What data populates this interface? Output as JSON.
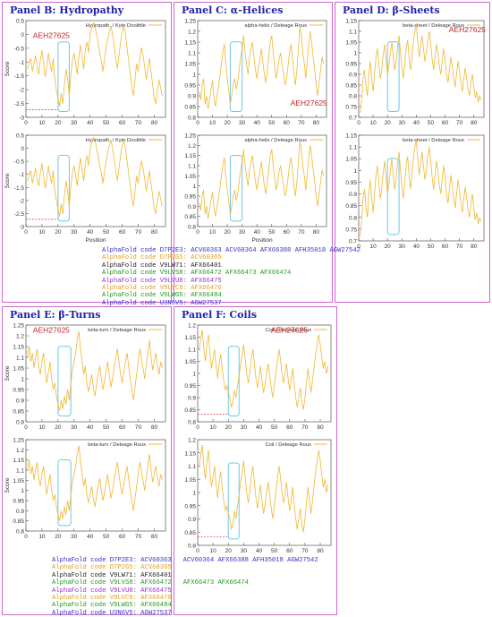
{
  "colors": {
    "frame": "#cc66cc",
    "title": "#2222aa",
    "line": "#f0b830",
    "box": "#6ec8e8",
    "stamp": "#cc2222",
    "refline": "#dd3333"
  },
  "panels": [
    {
      "id": "B",
      "title": "Panel B: Hydropathy",
      "stamp": "AEH27625",
      "legend": "Hydropath. / Kyte  Doolittle",
      "ylabel": "Score",
      "xlabel": "Position",
      "y_ticks": [
        "0.5",
        "0",
        "-0.5",
        "-1",
        "-1.5",
        "-2",
        "-2.5",
        "-3"
      ]
    },
    {
      "id": "C",
      "title": "Panel C: α-Helices",
      "stamp": "AEH27625",
      "legend": "alpha-helix / Deleage  Roux",
      "xlabel": "Position",
      "y_ticks": [
        "1.25",
        "1.2",
        "1.15",
        "1.1",
        "1.05",
        "1",
        "0.95",
        "0.9",
        "0.85",
        "0.8"
      ]
    },
    {
      "id": "D",
      "title": "Panel D: β-Sheets",
      "stamp": "AEH27625",
      "legend": "beta-sheet / Deleage  Roux",
      "y_ticks": [
        "1.15",
        "1.1",
        "1.05",
        "1",
        "0.95",
        "0.9",
        "0.85",
        "0.8",
        "0.75",
        "0.7"
      ]
    },
    {
      "id": "E",
      "title": "Panel E: β-Turns",
      "stamp": "AEH27625",
      "legend": "beta-turn / Deleage  Roux",
      "ylabel": "Score",
      "y_ticks": [
        "1.25",
        "1.2",
        "1.15",
        "1.1",
        "1.05",
        "1",
        "0.95",
        "0.9",
        "0.85",
        "0.8"
      ]
    },
    {
      "id": "F",
      "title": "Panel F: Coils",
      "stamp": "AEH27625",
      "legend": "Coil / Deleage  Roux",
      "y_ticks": [
        "1.2",
        "1.15",
        "1.1",
        "1.05",
        "1",
        "0.95",
        "0.9",
        "0.85",
        "0.8"
      ]
    }
  ],
  "x_ticks": [
    "0",
    "10",
    "20",
    "30",
    "40",
    "50",
    "60",
    "70",
    "80"
  ],
  "codes_top": [
    {
      "label": "AlphaFold code D7P2E3:",
      "ids": "ACV60363 ACV60364 AFX66388 AFH35018 AGW27542",
      "color": "#3333cc"
    },
    {
      "label": "AlphaFold code D7P2G5:",
      "ids": "ACV60365",
      "color": "#e0a020"
    },
    {
      "label": "AlphaFold code V9LW71:",
      "ids": "AFX66401",
      "color": "#222222"
    },
    {
      "label": "AlphaFold code V9LVS8:",
      "ids": "AFX66472 AFX66473 AFX66474",
      "color": "#229922"
    },
    {
      "label": "AlphaFold code V9LVU8:",
      "ids": "AFX66475",
      "color": "#9933cc"
    },
    {
      "label": "AlphaFold code V9LVC9:",
      "ids": "AFX66476",
      "color": "#e0a020"
    },
    {
      "label": "AlphaFold code V9LWG5:",
      "ids": "AFX66484",
      "color": "#229922"
    },
    {
      "label": "AlphaFold code U3N6V5:",
      "ids": "AGW27537",
      "color": "#3333cc"
    }
  ],
  "codes_bottom": [
    {
      "label": "AlphaFold code D7P2E3:",
      "ids": "ACV60363",
      "color": "#3333cc",
      "more": "ACV60364 AFX66388 AFH35018 AGW27542"
    },
    {
      "label": "AlphaFold code D7P2G5:",
      "ids": "ACV60365",
      "color": "#e0a020"
    },
    {
      "label": "AlphaFold code V9LW71:",
      "ids": "AFX66401",
      "color": "#222222"
    },
    {
      "label": "AlphaFold code V9LVS8:",
      "ids": "AFX66472",
      "color": "#229922",
      "more": "AFX66473 AFX66474"
    },
    {
      "label": "AlphaFold code V9LVU8:",
      "ids": "AFX66475",
      "color": "#9933cc"
    },
    {
      "label": "AlphaFold code V9LVC9:",
      "ids": "AFX66476",
      "color": "#e0a020"
    },
    {
      "label": "AlphaFold code V9LWG5:",
      "ids": "AFX66484",
      "color": "#229922"
    },
    {
      "label": "AlphaFold code U3N6V5:",
      "ids": "AGW27537",
      "color": "#3333cc"
    }
  ],
  "chart_data": [
    {
      "panel": "B",
      "type": "line",
      "series": [
        {
          "name": "Hydropath. / Kyte  Doolittle"
        }
      ],
      "xlim": [
        0,
        87
      ],
      "ylim": [
        -3,
        0.6
      ],
      "highlight_x": [
        20,
        27
      ],
      "x": [
        1,
        2,
        3,
        4,
        5,
        6,
        7,
        8,
        9,
        10,
        11,
        12,
        13,
        14,
        15,
        16,
        17,
        18,
        19,
        20,
        21,
        22,
        23,
        24,
        25,
        26,
        27,
        28,
        29,
        30,
        31,
        32,
        33,
        34,
        35,
        36,
        37,
        38,
        39,
        40,
        41,
        42,
        43,
        44,
        45,
        46,
        47,
        48,
        49,
        50,
        51,
        52,
        53,
        54,
        55,
        56,
        57,
        58,
        59,
        60,
        61,
        62,
        63,
        64,
        65,
        66,
        67,
        68,
        69,
        70,
        71,
        72,
        73,
        74,
        75,
        76,
        77,
        78,
        79,
        80,
        81,
        82,
        83,
        84,
        85
      ],
      "y": [
        -1.2,
        -1.0,
        -0.8,
        -1.3,
        -1.0,
        -0.7,
        -1.1,
        -1.4,
        -0.9,
        -0.5,
        -1.0,
        -1.5,
        -1.1,
        -0.6,
        -1.0,
        -1.3,
        -0.8,
        -1.6,
        -2.0,
        -2.3,
        -2.6,
        -2.1,
        -2.5,
        -1.8,
        -1.2,
        -1.6,
        -2.2,
        -1.4,
        -0.9,
        -0.6,
        -1.0,
        -1.4,
        -0.7,
        -0.3,
        -0.8,
        -1.2,
        -0.5,
        -0.2,
        -0.6,
        0.1,
        0.3,
        0.5,
        0.4,
        0.1,
        -0.2,
        -0.6,
        -0.9,
        -1.3,
        -0.8,
        -0.4,
        -0.1,
        0.2,
        0.4,
        0.1,
        -0.3,
        -0.8,
        -1.2,
        -0.7,
        -0.2,
        0.2,
        0.4,
        0.1,
        -0.4,
        -0.9,
        -1.4,
        -1.9,
        -2.2,
        -1.6,
        -1.0,
        -1.3,
        -0.8,
        -0.4,
        -0.7,
        -1.1,
        -1.6,
        -1.2,
        -0.8,
        -1.3,
        -1.8,
        -2.3,
        -2.5,
        -2.0,
        -1.6,
        -1.9,
        -2.2
      ]
    },
    {
      "panel": "C",
      "type": "line",
      "series": [
        {
          "name": "alpha-helix / Deleage  Roux"
        }
      ],
      "xlim": [
        0,
        87
      ],
      "ylim": [
        0.8,
        1.25
      ],
      "highlight_x": [
        22,
        30
      ],
      "x": [
        1,
        2,
        3,
        4,
        5,
        6,
        7,
        8,
        9,
        10,
        11,
        12,
        13,
        14,
        15,
        16,
        17,
        18,
        19,
        20,
        21,
        22,
        23,
        24,
        25,
        26,
        27,
        28,
        29,
        30,
        31,
        32,
        33,
        34,
        35,
        36,
        37,
        38,
        39,
        40,
        41,
        42,
        43,
        44,
        45,
        46,
        47,
        48,
        49,
        50,
        51,
        52,
        53,
        54,
        55,
        56,
        57,
        58,
        59,
        60,
        61,
        62,
        63,
        64,
        65,
        66,
        67,
        68,
        69,
        70,
        71,
        72,
        73,
        74,
        75,
        76,
        77,
        78,
        79,
        80,
        81,
        82,
        83,
        84,
        85
      ],
      "y": [
        0.92,
        0.88,
        0.95,
        0.98,
        0.86,
        0.9,
        0.84,
        0.88,
        0.93,
        0.97,
        0.89,
        0.85,
        0.9,
        0.94,
        0.99,
        1.05,
        1.1,
        1.14,
        1.05,
        0.98,
        0.92,
        0.86,
        0.9,
        0.95,
        0.98,
        0.93,
        0.96,
        1.02,
        1.08,
        1.12,
        1.18,
        1.1,
        1.05,
        1.0,
        1.08,
        1.12,
        1.15,
        1.08,
        1.02,
        0.98,
        1.03,
        1.07,
        1.12,
        1.06,
        1.0,
        0.96,
        1.02,
        1.08,
        1.15,
        1.18,
        1.1,
        1.04,
        0.98,
        1.02,
        1.07,
        1.1,
        1.05,
        1.0,
        0.95,
        0.98,
        1.04,
        1.1,
        1.14,
        1.08,
        1.0,
        0.95,
        1.02,
        1.12,
        1.22,
        1.18,
        1.1,
        1.05,
        0.98,
        1.06,
        1.14,
        1.2,
        1.15,
        1.08,
        1.02,
        0.95,
        0.9,
        0.96,
        1.02,
        1.08,
        1.05
      ]
    },
    {
      "panel": "D",
      "type": "line",
      "series": [
        {
          "name": "beta-sheet / Deleage  Roux"
        }
      ],
      "xlim": [
        0,
        87
      ],
      "ylim": [
        0.7,
        1.15
      ],
      "highlight_x": [
        20,
        28
      ],
      "x": [
        1,
        2,
        3,
        4,
        5,
        6,
        7,
        8,
        9,
        10,
        11,
        12,
        13,
        14,
        15,
        16,
        17,
        18,
        19,
        20,
        21,
        22,
        23,
        24,
        25,
        26,
        27,
        28,
        29,
        30,
        31,
        32,
        33,
        34,
        35,
        36,
        37,
        38,
        39,
        40,
        41,
        42,
        43,
        44,
        45,
        46,
        47,
        48,
        49,
        50,
        51,
        52,
        53,
        54,
        55,
        56,
        57,
        58,
        59,
        60,
        61,
        62,
        63,
        64,
        65,
        66,
        67,
        68,
        69,
        70,
        71,
        72,
        73,
        74,
        75,
        76,
        77,
        78,
        79,
        80,
        81,
        82,
        83,
        84,
        85
      ],
      "y": [
        0.72,
        0.78,
        0.88,
        0.92,
        0.85,
        0.8,
        0.9,
        0.96,
        0.88,
        0.82,
        0.9,
        0.98,
        1.02,
        0.95,
        0.88,
        0.92,
        0.99,
        1.04,
        0.97,
        0.9,
        0.94,
        1.0,
        1.05,
        0.98,
        0.92,
        0.96,
        1.03,
        1.08,
        1.0,
        0.93,
        0.88,
        0.95,
        1.02,
        1.06,
        0.98,
        0.92,
        0.98,
        1.05,
        1.1,
        1.13,
        1.05,
        0.98,
        1.03,
        1.08,
        1.02,
        0.96,
        1.0,
        1.06,
        1.1,
        1.04,
        0.97,
        0.92,
        0.98,
        1.04,
        1.0,
        0.94,
        0.9,
        0.96,
        1.02,
        0.97,
        0.9,
        0.86,
        0.92,
        0.98,
        0.94,
        0.88,
        0.84,
        0.9,
        0.96,
        0.92,
        0.86,
        0.82,
        0.88,
        0.93,
        0.88,
        0.83,
        0.8,
        0.86,
        0.9,
        0.84,
        0.79,
        0.82,
        0.77,
        0.8,
        0.78
      ]
    },
    {
      "panel": "E",
      "type": "line",
      "series": [
        {
          "name": "beta-turn / Deleage  Roux"
        }
      ],
      "xlim": [
        0,
        87
      ],
      "ylim": [
        0.8,
        1.25
      ],
      "highlight_x": [
        20,
        28
      ],
      "x": [
        1,
        2,
        3,
        4,
        5,
        6,
        7,
        8,
        9,
        10,
        11,
        12,
        13,
        14,
        15,
        16,
        17,
        18,
        19,
        20,
        21,
        22,
        23,
        24,
        25,
        26,
        27,
        28,
        29,
        30,
        31,
        32,
        33,
        34,
        35,
        36,
        37,
        38,
        39,
        40,
        41,
        42,
        43,
        44,
        45,
        46,
        47,
        48,
        49,
        50,
        51,
        52,
        53,
        54,
        55,
        56,
        57,
        58,
        59,
        60,
        61,
        62,
        63,
        64,
        65,
        66,
        67,
        68,
        69,
        70,
        71,
        72,
        73,
        74,
        75,
        76,
        77,
        78,
        79,
        80,
        81,
        82,
        83,
        84,
        85
      ],
      "y": [
        1.1,
        1.15,
        1.08,
        1.12,
        1.05,
        1.1,
        1.14,
        1.06,
        1.02,
        1.08,
        1.12,
        1.04,
        0.98,
        1.03,
        1.08,
        1.0,
        0.95,
        0.98,
        0.92,
        0.88,
        0.85,
        0.9,
        0.86,
        0.92,
        0.88,
        0.95,
        0.9,
        0.98,
        1.04,
        1.08,
        1.12,
        1.18,
        1.22,
        1.14,
        1.08,
        1.02,
        1.06,
        0.98,
        0.94,
        0.98,
        1.02,
        0.96,
        0.92,
        0.97,
        1.02,
        1.06,
        1.0,
        0.95,
        0.99,
        1.04,
        1.08,
        1.02,
        0.96,
        1.0,
        1.05,
        1.1,
        1.14,
        1.08,
        1.02,
        0.98,
        1.03,
        1.08,
        1.12,
        1.06,
        1.0,
        0.95,
        0.9,
        0.96,
        1.02,
        1.08,
        1.14,
        1.1,
        1.05,
        1.0,
        1.06,
        1.12,
        1.18,
        1.1,
        1.04,
        1.08,
        1.12,
        1.06,
        1.02,
        1.08,
        1.05
      ]
    },
    {
      "panel": "F",
      "type": "line",
      "series": [
        {
          "name": "Coil / Deleage  Roux"
        }
      ],
      "xlim": [
        0,
        87
      ],
      "ylim": [
        0.8,
        1.2
      ],
      "highlight_x": [
        20,
        27
      ],
      "x": [
        1,
        2,
        3,
        4,
        5,
        6,
        7,
        8,
        9,
        10,
        11,
        12,
        13,
        14,
        15,
        16,
        17,
        18,
        19,
        20,
        21,
        22,
        23,
        24,
        25,
        26,
        27,
        28,
        29,
        30,
        31,
        32,
        33,
        34,
        35,
        36,
        37,
        38,
        39,
        40,
        41,
        42,
        43,
        44,
        45,
        46,
        47,
        48,
        49,
        50,
        51,
        52,
        53,
        54,
        55,
        56,
        57,
        58,
        59,
        60,
        61,
        62,
        63,
        64,
        65,
        66,
        67,
        68,
        69,
        70,
        71,
        72,
        73,
        74,
        75,
        76,
        77,
        78,
        79,
        80,
        81,
        82,
        83,
        84,
        85
      ],
      "y": [
        1.1,
        1.14,
        1.18,
        1.1,
        1.05,
        1.12,
        1.16,
        1.08,
        1.02,
        1.06,
        1.1,
        1.03,
        0.98,
        1.04,
        1.08,
        1.02,
        0.97,
        0.93,
        0.95,
        0.92,
        0.9,
        0.86,
        0.88,
        0.93,
        0.9,
        0.95,
        0.99,
        1.04,
        1.08,
        1.12,
        1.06,
        1.0,
        0.96,
        1.0,
        1.06,
        1.1,
        1.04,
        0.98,
        0.94,
        0.98,
        1.03,
        0.97,
        0.92,
        0.96,
        1.0,
        1.04,
        0.99,
        0.94,
        0.9,
        0.95,
        1.0,
        1.05,
        1.1,
        1.06,
        1.0,
        0.96,
        1.0,
        1.04,
        0.98,
        0.93,
        0.97,
        1.02,
        0.96,
        0.9,
        0.86,
        0.9,
        0.94,
        0.88,
        0.85,
        0.9,
        0.96,
        1.02,
        0.97,
        0.92,
        0.97,
        1.03,
        1.08,
        1.12,
        1.16,
        1.12,
        1.07,
        1.02,
        1.05,
        1.0,
        1.03
      ]
    }
  ]
}
